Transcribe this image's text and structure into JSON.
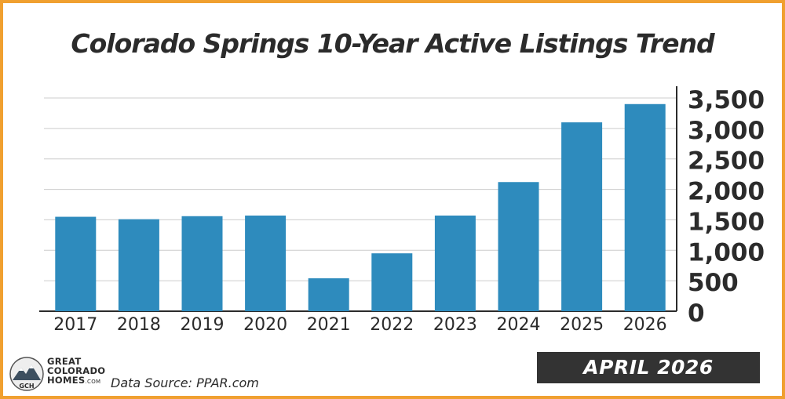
{
  "title": "Colorado Springs 10-Year Active Listings Trend",
  "badge": "APRIL 2026",
  "source": "Data Source: PPAR.com",
  "logo": {
    "line1": "GREAT",
    "line2": "COLORADO",
    "line3": "HOMES",
    "suffix": ".COM",
    "monogram": "GCH"
  },
  "colors": {
    "bar": "#2e8bbd",
    "border": "#f0a030",
    "badge": "#333333",
    "text": "#2b2b2b"
  },
  "chart_data": {
    "type": "bar",
    "title": "Colorado Springs 10-Year Active Listings Trend",
    "categories": [
      "2017",
      "2018",
      "2019",
      "2020",
      "2021",
      "2022",
      "2023",
      "2024",
      "2025",
      "2026"
    ],
    "values": [
      1550,
      1510,
      1560,
      1570,
      540,
      950,
      1570,
      2120,
      3100,
      3400
    ],
    "ylim": [
      0,
      3500
    ],
    "yticks": [
      0,
      500,
      1000,
      1500,
      2000,
      2500,
      3000,
      3500
    ],
    "ytick_labels": [
      "0",
      "500",
      "1,000",
      "1,500",
      "2,000",
      "2,500",
      "3,000",
      "3,500"
    ],
    "y_axis_side": "right",
    "grid": true,
    "legend": "none"
  }
}
